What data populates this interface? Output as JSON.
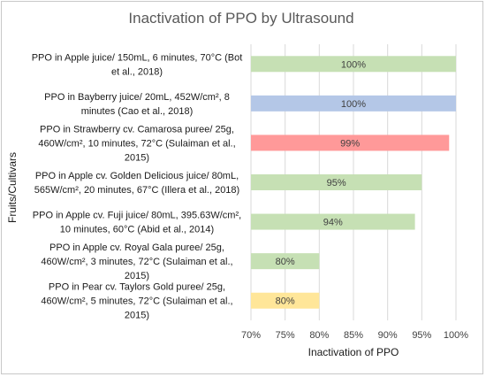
{
  "chart_data": {
    "type": "bar",
    "orientation": "horizontal",
    "title": "Inactivation of PPO by Ultrasound",
    "xlabel": "Inactivation of PPO",
    "ylabel": "Fruits/Cultivars",
    "xlim": [
      70,
      100
    ],
    "xticks": [
      "70%",
      "75%",
      "80%",
      "85%",
      "90%",
      "95%",
      "100%"
    ],
    "grid": "vertical",
    "categories": [
      [
        "PPO in Apple juice/ 150mL, 6 minutes, 70°C (Bot",
        "et al., 2018)"
      ],
      [
        "PPO in Bayberry juice/ 20mL, 452W/cm², 8",
        "minutes (Cao et al., 2018)"
      ],
      [
        "PPO in Strawberry cv. Camarosa puree/ 25g,",
        "460W/cm², 10 minutes, 72°C (Sulaiman et al.,",
        "2015)"
      ],
      [
        "PPO in Apple cv. Golden Delicious juice/ 80mL,",
        "565W/cm², 20 minutes, 67°C (Illera et al., 2018)"
      ],
      [
        "PPO in Apple cv. Fuji juice/ 80mL, 395.63W/cm²,",
        "10 minutes, 60°C (Abid et al., 2014)"
      ],
      [
        "PPO in Apple cv. Royal Gala puree/ 25g,",
        "460W/cm², 3 minutes, 72°C (Sulaiman et al.,",
        "2015)"
      ],
      [
        "PPO in Pear cv. Taylors Gold puree/ 25g,",
        "460W/cm², 5 minutes, 72°C (Sulaiman et al.,",
        "2015)"
      ]
    ],
    "values": [
      100,
      100,
      99,
      95,
      94,
      80,
      80
    ],
    "data_labels": [
      "100%",
      "100%",
      "99%",
      "95%",
      "94%",
      "80%",
      "80%"
    ],
    "colors": [
      "#c6e0b4",
      "#b4c7e7",
      "#ff9999",
      "#c6e0b4",
      "#c6e0b4",
      "#c6e0b4",
      "#ffe699"
    ]
  }
}
